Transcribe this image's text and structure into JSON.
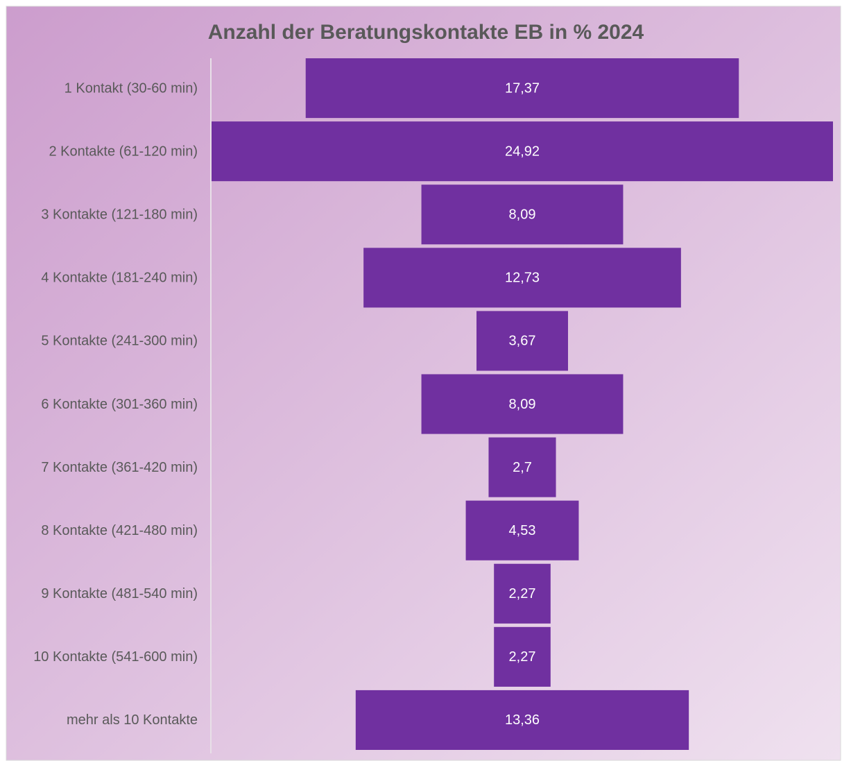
{
  "chart_data": {
    "type": "funnel",
    "title": "Anzahl der Beratungskontakte EB  in % 2024",
    "categories": [
      "1 Kontakt (30-60 min)",
      "2 Kontakte (61-120 min)",
      "3 Kontakte (121-180 min)",
      "4 Kontakte (181-240 min)",
      "5 Kontakte (241-300 min)",
      "6 Kontakte (301-360 min)",
      "7 Kontakte (361-420 min)",
      "8 Kontakte (421-480 min)",
      "9 Kontakte (481-540 min)",
      "10 Kontakte (541-600 min)",
      "mehr als 10 Kontakte"
    ],
    "values": [
      17.37,
      24.92,
      8.09,
      12.73,
      3.67,
      8.09,
      2.7,
      4.53,
      2.27,
      2.27,
      13.36
    ],
    "value_labels": [
      "17,37",
      "24,92",
      "8,09",
      "12,73",
      "3,67",
      "8,09",
      "2,7",
      "4,53",
      "2,27",
      "2,27",
      "13,36"
    ],
    "color": "#7030a0"
  }
}
